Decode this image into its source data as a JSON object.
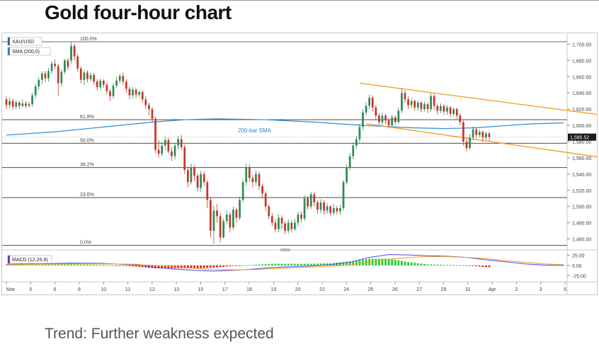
{
  "title": "Gold four-hour chart",
  "footer": "Trend: Further weakness expected",
  "chart_data": {
    "type": "candlestick",
    "symbol": "XAU/USD",
    "indicators": [
      "SMA (200,0)",
      "MACD (12,26,9)"
    ],
    "sma_label": "200-bar SMA",
    "last_price_label": "1,585.52",
    "price_range": [
      1450,
      1710
    ],
    "y_ticks": [
      "1,700.00",
      "1,680.00",
      "1,660.00",
      "1,640.00",
      "1,620.00",
      "1,600.00",
      "1,580.00",
      "1,560.00",
      "1,540.00",
      "1,520.00",
      "1,500.00",
      "1,480.00",
      "1,460.00"
    ],
    "fib_levels": [
      {
        "label": "100.0%",
        "price": 1703
      },
      {
        "label": "61.8%",
        "price": 1607
      },
      {
        "label": "50.0%",
        "price": 1578
      },
      {
        "label": "38.2%",
        "price": 1548
      },
      {
        "label": "23.6%",
        "price": 1511
      },
      {
        "label": "0.0%",
        "price": 1452
      }
    ],
    "x_labels": [
      "Mar",
      "5",
      "6",
      "8",
      "10",
      "11",
      "12",
      "13",
      "15",
      "17",
      "18",
      "19",
      "20",
      "22",
      "24",
      "25",
      "26",
      "27",
      "29",
      "31",
      "Apr",
      "2",
      "3",
      "5"
    ],
    "macd_ticks": [
      "25.00",
      "0.00",
      "-25.00"
    ],
    "macd_range": [
      -35,
      35
    ],
    "candles": [
      [
        1632,
        1625,
        1636,
        1620
      ],
      [
        1625,
        1630,
        1634,
        1621
      ],
      [
        1630,
        1623,
        1633,
        1619
      ],
      [
        1623,
        1628,
        1631,
        1620
      ],
      [
        1628,
        1624,
        1630,
        1620
      ],
      [
        1624,
        1627,
        1632,
        1622
      ],
      [
        1627,
        1624,
        1630,
        1621
      ],
      [
        1624,
        1626,
        1629,
        1622
      ],
      [
        1626,
        1637,
        1640,
        1623
      ],
      [
        1637,
        1648,
        1651,
        1633
      ],
      [
        1648,
        1656,
        1659,
        1644
      ],
      [
        1656,
        1664,
        1667,
        1651
      ],
      [
        1664,
        1658,
        1667,
        1653
      ],
      [
        1658,
        1667,
        1671,
        1654
      ],
      [
        1667,
        1676,
        1679,
        1663
      ],
      [
        1676,
        1673,
        1681,
        1669
      ],
      [
        1673,
        1652,
        1676,
        1636
      ],
      [
        1652,
        1666,
        1669,
        1648
      ],
      [
        1666,
        1680,
        1682,
        1663
      ],
      [
        1680,
        1672,
        1683,
        1668
      ],
      [
        1680,
        1698,
        1703,
        1676
      ],
      [
        1698,
        1685,
        1701,
        1680
      ],
      [
        1685,
        1670,
        1688,
        1666
      ],
      [
        1670,
        1656,
        1673,
        1652
      ],
      [
        1656,
        1665,
        1668,
        1650
      ],
      [
        1665,
        1657,
        1668,
        1653
      ],
      [
        1657,
        1662,
        1665,
        1654
      ],
      [
        1662,
        1654,
        1665,
        1650
      ],
      [
        1654,
        1647,
        1657,
        1643
      ],
      [
        1647,
        1655,
        1658,
        1644
      ],
      [
        1655,
        1650,
        1657,
        1646
      ],
      [
        1650,
        1642,
        1653,
        1638
      ],
      [
        1642,
        1636,
        1645,
        1630
      ],
      [
        1636,
        1649,
        1652,
        1633
      ],
      [
        1649,
        1655,
        1660,
        1646
      ],
      [
        1655,
        1661,
        1664,
        1652
      ],
      [
        1661,
        1654,
        1665,
        1650
      ],
      [
        1654,
        1645,
        1657,
        1640
      ],
      [
        1645,
        1637,
        1648,
        1632
      ],
      [
        1637,
        1644,
        1647,
        1633
      ],
      [
        1644,
        1638,
        1646,
        1634
      ],
      [
        1638,
        1641,
        1643,
        1635
      ],
      [
        1641,
        1632,
        1643,
        1628
      ],
      [
        1632,
        1625,
        1636,
        1620
      ],
      [
        1625,
        1620,
        1628,
        1612
      ],
      [
        1620,
        1608,
        1623,
        1604
      ],
      [
        1608,
        1570,
        1611,
        1566
      ],
      [
        1570,
        1565,
        1582,
        1560
      ],
      [
        1565,
        1575,
        1580,
        1562
      ],
      [
        1575,
        1582,
        1586,
        1570
      ],
      [
        1582,
        1568,
        1585,
        1565
      ],
      [
        1568,
        1562,
        1573,
        1556
      ],
      [
        1562,
        1575,
        1578,
        1558
      ],
      [
        1575,
        1583,
        1587,
        1570
      ],
      [
        1583,
        1573,
        1588,
        1569
      ],
      [
        1573,
        1545,
        1576,
        1540
      ],
      [
        1545,
        1530,
        1549,
        1524
      ],
      [
        1530,
        1548,
        1553,
        1527
      ],
      [
        1548,
        1538,
        1551,
        1531
      ],
      [
        1538,
        1523,
        1541,
        1519
      ],
      [
        1523,
        1540,
        1544,
        1518
      ],
      [
        1540,
        1530,
        1543,
        1525
      ],
      [
        1530,
        1508,
        1533,
        1498
      ],
      [
        1508,
        1470,
        1512,
        1462
      ],
      [
        1470,
        1495,
        1501,
        1454
      ],
      [
        1495,
        1488,
        1503,
        1480
      ],
      [
        1488,
        1462,
        1492,
        1456
      ],
      [
        1462,
        1482,
        1485,
        1460
      ],
      [
        1482,
        1490,
        1495,
        1478
      ],
      [
        1490,
        1474,
        1493,
        1468
      ],
      [
        1474,
        1496,
        1500,
        1471
      ],
      [
        1496,
        1486,
        1499,
        1480
      ],
      [
        1486,
        1508,
        1512,
        1483
      ],
      [
        1508,
        1530,
        1534,
        1505
      ],
      [
        1530,
        1548,
        1553,
        1525
      ],
      [
        1548,
        1535,
        1552,
        1530
      ],
      [
        1535,
        1530,
        1539,
        1524
      ],
      [
        1530,
        1540,
        1545,
        1526
      ],
      [
        1540,
        1525,
        1543,
        1520
      ],
      [
        1525,
        1516,
        1528,
        1510
      ],
      [
        1516,
        1500,
        1519,
        1494
      ],
      [
        1500,
        1488,
        1503,
        1484
      ],
      [
        1488,
        1480,
        1492,
        1476
      ],
      [
        1480,
        1472,
        1484,
        1468
      ],
      [
        1472,
        1486,
        1490,
        1468
      ],
      [
        1486,
        1479,
        1489,
        1472
      ],
      [
        1479,
        1470,
        1482,
        1466
      ],
      [
        1470,
        1480,
        1484,
        1467
      ],
      [
        1480,
        1472,
        1483,
        1468
      ],
      [
        1472,
        1480,
        1485,
        1470
      ],
      [
        1480,
        1490,
        1493,
        1476
      ],
      [
        1490,
        1485,
        1494,
        1480
      ],
      [
        1485,
        1510,
        1514,
        1482
      ],
      [
        1510,
        1500,
        1513,
        1496
      ],
      [
        1500,
        1515,
        1518,
        1497
      ],
      [
        1515,
        1505,
        1518,
        1500
      ],
      [
        1505,
        1496,
        1508,
        1491
      ],
      [
        1496,
        1505,
        1509,
        1492
      ],
      [
        1505,
        1495,
        1508,
        1490
      ],
      [
        1495,
        1500,
        1504,
        1491
      ],
      [
        1500,
        1492,
        1502,
        1488
      ],
      [
        1492,
        1498,
        1503,
        1489
      ],
      [
        1498,
        1494,
        1501,
        1490
      ],
      [
        1494,
        1498,
        1502,
        1490
      ],
      [
        1498,
        1530,
        1533,
        1495
      ],
      [
        1530,
        1548,
        1552,
        1527
      ],
      [
        1548,
        1562,
        1566,
        1545
      ],
      [
        1562,
        1575,
        1579,
        1558
      ],
      [
        1575,
        1583,
        1587,
        1571
      ],
      [
        1583,
        1598,
        1602,
        1579
      ],
      [
        1598,
        1616,
        1620,
        1594
      ],
      [
        1616,
        1624,
        1628,
        1612
      ],
      [
        1624,
        1634,
        1638,
        1620
      ],
      [
        1634,
        1622,
        1637,
        1617
      ],
      [
        1622,
        1612,
        1625,
        1606
      ],
      [
        1612,
        1604,
        1615,
        1600
      ],
      [
        1604,
        1612,
        1616,
        1600
      ],
      [
        1612,
        1606,
        1614,
        1601
      ],
      [
        1606,
        1600,
        1609,
        1596
      ],
      [
        1600,
        1610,
        1613,
        1598
      ],
      [
        1610,
        1604,
        1612,
        1600
      ],
      [
        1604,
        1618,
        1622,
        1602
      ],
      [
        1618,
        1640,
        1646,
        1615
      ],
      [
        1640,
        1632,
        1643,
        1628
      ],
      [
        1632,
        1625,
        1636,
        1620
      ],
      [
        1625,
        1630,
        1634,
        1621
      ],
      [
        1630,
        1622,
        1632,
        1618
      ],
      [
        1622,
        1628,
        1631,
        1618
      ],
      [
        1628,
        1620,
        1630,
        1616
      ],
      [
        1620,
        1626,
        1629,
        1617
      ],
      [
        1626,
        1620,
        1628,
        1615
      ],
      [
        1620,
        1636,
        1640,
        1617
      ],
      [
        1636,
        1624,
        1639,
        1619
      ],
      [
        1624,
        1618,
        1627,
        1613
      ],
      [
        1618,
        1624,
        1627,
        1615
      ],
      [
        1624,
        1617,
        1626,
        1613
      ],
      [
        1617,
        1622,
        1625,
        1613
      ],
      [
        1622,
        1614,
        1624,
        1610
      ],
      [
        1614,
        1620,
        1622,
        1611
      ],
      [
        1620,
        1612,
        1622,
        1608
      ],
      [
        1612,
        1604,
        1615,
        1600
      ],
      [
        1604,
        1580,
        1606,
        1575
      ],
      [
        1580,
        1572,
        1584,
        1568
      ],
      [
        1572,
        1585,
        1589,
        1570
      ],
      [
        1585,
        1595,
        1599,
        1582
      ],
      [
        1595,
        1588,
        1598,
        1584
      ],
      [
        1588,
        1592,
        1595,
        1585
      ],
      [
        1592,
        1585,
        1594,
        1580
      ],
      [
        1585,
        1590,
        1592,
        1582
      ],
      [
        1590,
        1585.5,
        1592,
        1581
      ]
    ],
    "sma": [
      [
        0,
        1588
      ],
      [
        15,
        1592
      ],
      [
        30,
        1598
      ],
      [
        45,
        1604
      ],
      [
        55,
        1607
      ],
      [
        65,
        1608
      ],
      [
        80,
        1607
      ],
      [
        95,
        1604
      ],
      [
        110,
        1600
      ],
      [
        125,
        1597
      ],
      [
        135,
        1596
      ],
      [
        145,
        1597
      ],
      [
        155,
        1600
      ],
      [
        163,
        1602
      ],
      [
        172,
        1603
      ]
    ],
    "channel_upper": [
      [
        1652,
        109
      ],
      [
        1612,
        185
      ]
    ],
    "channel_lower": [
      [
        1602,
        111
      ],
      [
        1558,
        188
      ]
    ],
    "macd_line": [
      [
        0,
        3
      ],
      [
        10,
        4
      ],
      [
        20,
        6
      ],
      [
        30,
        5
      ],
      [
        40,
        1
      ],
      [
        46,
        -5
      ],
      [
        52,
        -9
      ],
      [
        58,
        -12
      ],
      [
        64,
        -14
      ],
      [
        70,
        -12
      ],
      [
        76,
        -9
      ],
      [
        82,
        -5
      ],
      [
        88,
        -3
      ],
      [
        94,
        -1
      ],
      [
        100,
        2
      ],
      [
        106,
        8
      ],
      [
        112,
        20
      ],
      [
        118,
        27
      ],
      [
        124,
        26
      ],
      [
        130,
        24
      ],
      [
        136,
        23
      ],
      [
        142,
        20
      ],
      [
        148,
        14
      ],
      [
        154,
        9
      ],
      [
        160,
        4
      ],
      [
        166,
        1
      ],
      [
        172,
        0
      ]
    ],
    "signal_line": [
      [
        0,
        2
      ],
      [
        10,
        3
      ],
      [
        20,
        4
      ],
      [
        30,
        4
      ],
      [
        40,
        3
      ],
      [
        46,
        0
      ],
      [
        52,
        -4
      ],
      [
        58,
        -7
      ],
      [
        64,
        -10
      ],
      [
        70,
        -11
      ],
      [
        76,
        -10
      ],
      [
        82,
        -8
      ],
      [
        88,
        -6
      ],
      [
        94,
        -4
      ],
      [
        100,
        -2
      ],
      [
        106,
        1
      ],
      [
        112,
        8
      ],
      [
        118,
        15
      ],
      [
        124,
        20
      ],
      [
        130,
        22
      ],
      [
        136,
        22
      ],
      [
        142,
        20
      ],
      [
        148,
        17
      ],
      [
        154,
        12
      ],
      [
        160,
        8
      ],
      [
        166,
        4
      ],
      [
        172,
        2
      ]
    ]
  }
}
